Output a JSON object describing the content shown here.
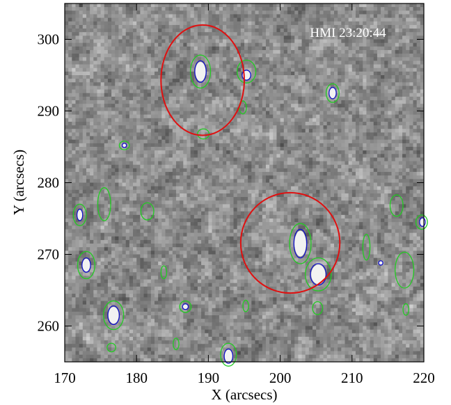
{
  "chart_data": {
    "type": "image",
    "annotation": "HMI  23:20:44",
    "x_label": "X (arcsecs)",
    "y_label": "Y (arcsecs)",
    "xlim": [
      170,
      220
    ],
    "ylim": [
      255,
      305
    ],
    "xticks": [
      170,
      180,
      190,
      200,
      210,
      220
    ],
    "yticks": [
      260,
      270,
      280,
      290,
      300
    ],
    "regions": {
      "color": "#e01010",
      "ellipses": [
        [
          189.2,
          294.3,
          5.8,
          7.7
        ],
        [
          201.4,
          271.6,
          6.9,
          7.0
        ]
      ]
    },
    "contours": [
      {
        "color": "#22cc22",
        "blobs": [
          [
            188.9,
            295.5,
            1.4,
            2.3
          ],
          [
            202.8,
            271.5,
            1.5,
            2.8
          ],
          [
            205.3,
            267.2,
            1.8,
            2.3
          ],
          [
            207.3,
            292.5,
            0.9,
            1.3
          ],
          [
            195.3,
            295.5,
            1.3,
            1.6
          ],
          [
            173.0,
            268.5,
            1.2,
            1.9
          ],
          [
            176.8,
            261.5,
            1.4,
            2.0
          ],
          [
            172.1,
            275.5,
            0.9,
            1.5
          ],
          [
            192.8,
            256.0,
            1.1,
            1.6
          ],
          [
            219.7,
            274.5,
            0.8,
            1.0
          ],
          [
            186.8,
            262.7,
            0.8,
            0.8
          ],
          [
            178.3,
            285.2,
            0.7,
            0.6
          ],
          [
            189.3,
            286.8,
            0.8,
            0.7
          ],
          [
            194.8,
            290.5,
            0.5,
            0.9
          ],
          [
            175.5,
            277.0,
            0.9,
            2.3
          ],
          [
            181.5,
            276.0,
            0.9,
            1.2
          ],
          [
            205.2,
            262.5,
            0.7,
            0.9
          ],
          [
            217.3,
            267.8,
            1.3,
            2.5
          ],
          [
            216.2,
            276.8,
            0.9,
            1.5
          ],
          [
            212.0,
            271.0,
            0.5,
            1.8
          ],
          [
            185.5,
            257.5,
            0.4,
            0.8
          ],
          [
            195.2,
            262.8,
            0.4,
            0.8
          ],
          [
            176.5,
            257.0,
            0.6,
            0.6
          ],
          [
            217.5,
            262.3,
            0.4,
            0.8
          ],
          [
            183.8,
            267.5,
            0.4,
            0.9
          ]
        ]
      },
      {
        "color": "#1010cc",
        "blobs": [
          [
            188.9,
            295.5,
            0.8,
            1.5
          ],
          [
            202.8,
            271.5,
            0.9,
            2.0
          ],
          [
            205.3,
            267.2,
            1.1,
            1.5
          ],
          [
            207.3,
            292.5,
            0.5,
            0.8
          ],
          [
            195.3,
            295.0,
            0.6,
            0.7
          ],
          [
            173.0,
            268.5,
            0.6,
            1.0
          ],
          [
            176.8,
            261.5,
            0.8,
            1.3
          ],
          [
            172.1,
            275.5,
            0.4,
            0.8
          ],
          [
            192.8,
            255.8,
            0.6,
            1.0
          ],
          [
            219.8,
            274.5,
            0.4,
            0.6
          ],
          [
            186.8,
            262.7,
            0.4,
            0.4
          ],
          [
            178.3,
            285.2,
            0.3,
            0.3
          ],
          [
            214.0,
            268.8,
            0.3,
            0.3
          ]
        ]
      }
    ]
  }
}
